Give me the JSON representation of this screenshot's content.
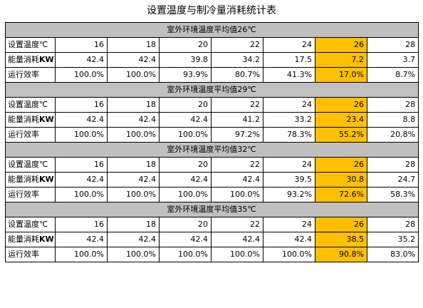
{
  "title": "设置温度与制冷量消耗统计表",
  "row_labels": {
    "temp": "设置温度℃",
    "energy_a": "能量消耗",
    "energy_b": "KW",
    "efficiency": "运行效率"
  },
  "sections": [
    {
      "header": "室外环境温度平均值26℃",
      "temps": [
        "16",
        "18",
        "20",
        "22",
        "24",
        "26",
        "28"
      ],
      "energy": [
        "42.4",
        "42.4",
        "39.8",
        "34.2",
        "17.5",
        "7.2",
        "3.7"
      ],
      "efficiency": [
        "100.0%",
        "100.0%",
        "93.9%",
        "80.7%",
        "41.3%",
        "17.0%",
        "8.7%"
      ]
    },
    {
      "header": "室外环境温度平均值29℃",
      "temps": [
        "16",
        "18",
        "20",
        "22",
        "24",
        "26",
        "28"
      ],
      "energy": [
        "42.4",
        "42.4",
        "42.4",
        "41.2",
        "33.2",
        "23.4",
        "8.8"
      ],
      "efficiency": [
        "100.0%",
        "100.0%",
        "100.0%",
        "97.2%",
        "78.3%",
        "55.2%",
        "20.8%"
      ]
    },
    {
      "header": "室外环境温度平均值32℃",
      "temps": [
        "16",
        "18",
        "20",
        "22",
        "24",
        "26",
        "28"
      ],
      "energy": [
        "42.4",
        "42.4",
        "42.4",
        "42.4",
        "39.5",
        "30.8",
        "24.7"
      ],
      "efficiency": [
        "100.0%",
        "100.0%",
        "100.0%",
        "100.0%",
        "93.2%",
        "72.6%",
        "58.3%"
      ]
    },
    {
      "header": "室外环境温度平均值35℃",
      "temps": [
        "16",
        "18",
        "20",
        "22",
        "24",
        "26",
        "28"
      ],
      "energy": [
        "42.4",
        "42.4",
        "42.4",
        "42.4",
        "42.4",
        "38.5",
        "35.2"
      ],
      "efficiency": [
        "100.0%",
        "100.0%",
        "100.0%",
        "100.0%",
        "100.0%",
        "90.8%",
        "83.0%"
      ]
    }
  ],
  "colors": {
    "highlight": "#ffc000",
    "header_bg": "#c0c0c0"
  }
}
